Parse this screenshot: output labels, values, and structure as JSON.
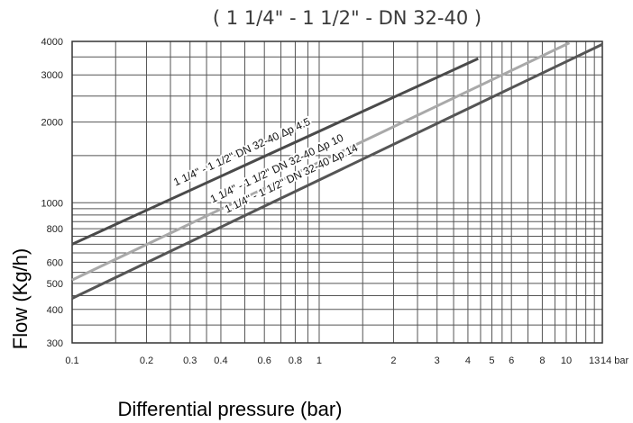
{
  "chart_data": {
    "type": "line",
    "title": "( 1 1/4\" - 1 1/2\" -  DN 32-40 )",
    "xlabel": "Differential pressure (bar)",
    "ylabel": "Flow (Kg/h)",
    "x_scale": "log",
    "y_scale": "log",
    "xlim": [
      0.1,
      14
    ],
    "ylim": [
      300,
      4000
    ],
    "grid": true,
    "x_ticks": [
      0.1,
      0.2,
      0.3,
      0.4,
      0.6,
      0.8,
      1,
      2,
      3,
      4,
      5,
      6,
      8,
      10,
      13,
      14
    ],
    "x_tick_labels": [
      "0.1",
      "0.2",
      "0.3",
      "0.4",
      "0.6",
      "0.8",
      "1",
      "2",
      "3",
      "4",
      "5",
      "6",
      "8",
      "10",
      "13",
      "14 bar"
    ],
    "y_ticks": [
      300,
      400,
      500,
      600,
      800,
      1000,
      2000,
      3000,
      4000
    ],
    "y_tick_labels": [
      "300",
      "400",
      "500",
      "600",
      "800",
      "1000",
      "2000",
      "3000",
      "4000"
    ],
    "series": [
      {
        "name": "1 1/4\" - 1 1/2\" DN 32-40 Δp 4.5",
        "color": "#4a4a4a",
        "x": [
          0.1,
          4.4
        ],
        "y": [
          700,
          3450
        ]
      },
      {
        "name": "1 1/4\" - 1 1/2\" DN 32-40 Δp 10",
        "color": "#a9a9a9",
        "x": [
          0.1,
          10.3
        ],
        "y": [
          515,
          3950
        ]
      },
      {
        "name": "1 1/4\" - 1 1/2\" DN 32-40 Δp 14",
        "color": "#555555",
        "x": [
          0.1,
          14
        ],
        "y": [
          440,
          3900
        ]
      }
    ]
  }
}
